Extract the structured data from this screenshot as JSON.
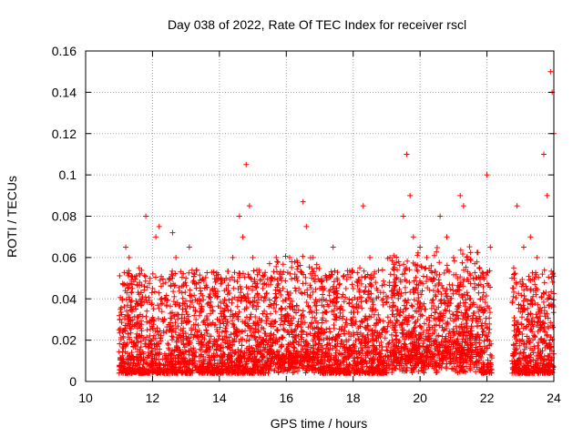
{
  "chart_data": {
    "type": "scatter",
    "title": "Day 038 of 2022, Rate Of TEC Index for receiver rscl",
    "xlabel": "GPS time / hours",
    "ylabel": "ROTI / TECUs",
    "xlim": [
      10,
      24
    ],
    "ylim": [
      0,
      0.16
    ],
    "xticks": [
      "10",
      "12",
      "14",
      "16",
      "18",
      "20",
      "22",
      "24"
    ],
    "yticks": [
      "0",
      "0.02",
      "0.04",
      "0.06",
      "0.08",
      "0.1",
      "0.12",
      "0.14",
      "0.16"
    ],
    "grid": true,
    "marker": "+",
    "color": "#ff0000",
    "series": [
      {
        "name": "ROTI",
        "x": [
          11.0,
          11.1,
          11.2,
          11.3,
          11.3,
          11.4,
          11.5,
          11.6,
          11.8,
          11.9,
          12.0,
          12.1,
          12.2,
          12.3,
          12.5,
          12.6,
          12.7,
          12.9,
          13.0,
          13.1,
          13.3,
          13.4,
          13.6,
          13.8,
          14.0,
          14.2,
          14.4,
          14.6,
          14.7,
          14.8,
          14.9,
          15.0,
          15.1,
          15.3,
          15.5,
          15.7,
          15.9,
          16.1,
          16.3,
          16.5,
          16.6,
          16.8,
          17.0,
          17.2,
          17.4,
          17.6,
          17.8,
          18.0,
          18.2,
          18.3,
          18.5,
          18.7,
          18.9,
          19.1,
          19.3,
          19.5,
          19.6,
          19.7,
          19.8,
          20.0,
          20.2,
          20.4,
          20.6,
          20.8,
          21.0,
          21.2,
          21.3,
          21.4,
          21.6,
          21.8,
          22.0,
          22.1,
          22.8,
          22.9,
          23.1,
          23.3,
          23.5,
          23.7,
          23.8,
          23.9,
          23.95,
          24.0
        ],
        "y": [
          0.025,
          0.04,
          0.065,
          0.03,
          0.06,
          0.045,
          0.035,
          0.055,
          0.08,
          0.02,
          0.045,
          0.07,
          0.075,
          0.03,
          0.05,
          0.072,
          0.06,
          0.035,
          0.05,
          0.065,
          0.03,
          0.04,
          0.025,
          0.045,
          0.03,
          0.05,
          0.06,
          0.08,
          0.07,
          0.105,
          0.085,
          0.06,
          0.035,
          0.045,
          0.057,
          0.06,
          0.045,
          0.06,
          0.05,
          0.087,
          0.075,
          0.06,
          0.045,
          0.05,
          0.065,
          0.035,
          0.03,
          0.045,
          0.055,
          0.085,
          0.06,
          0.045,
          0.04,
          0.06,
          0.05,
          0.08,
          0.11,
          0.09,
          0.07,
          0.065,
          0.06,
          0.05,
          0.08,
          0.07,
          0.06,
          0.09,
          0.085,
          0.06,
          0.05,
          0.04,
          0.1,
          0.065,
          0.055,
          0.085,
          0.065,
          0.07,
          0.06,
          0.11,
          0.09,
          0.15,
          0.14,
          0.12
        ]
      }
    ]
  }
}
